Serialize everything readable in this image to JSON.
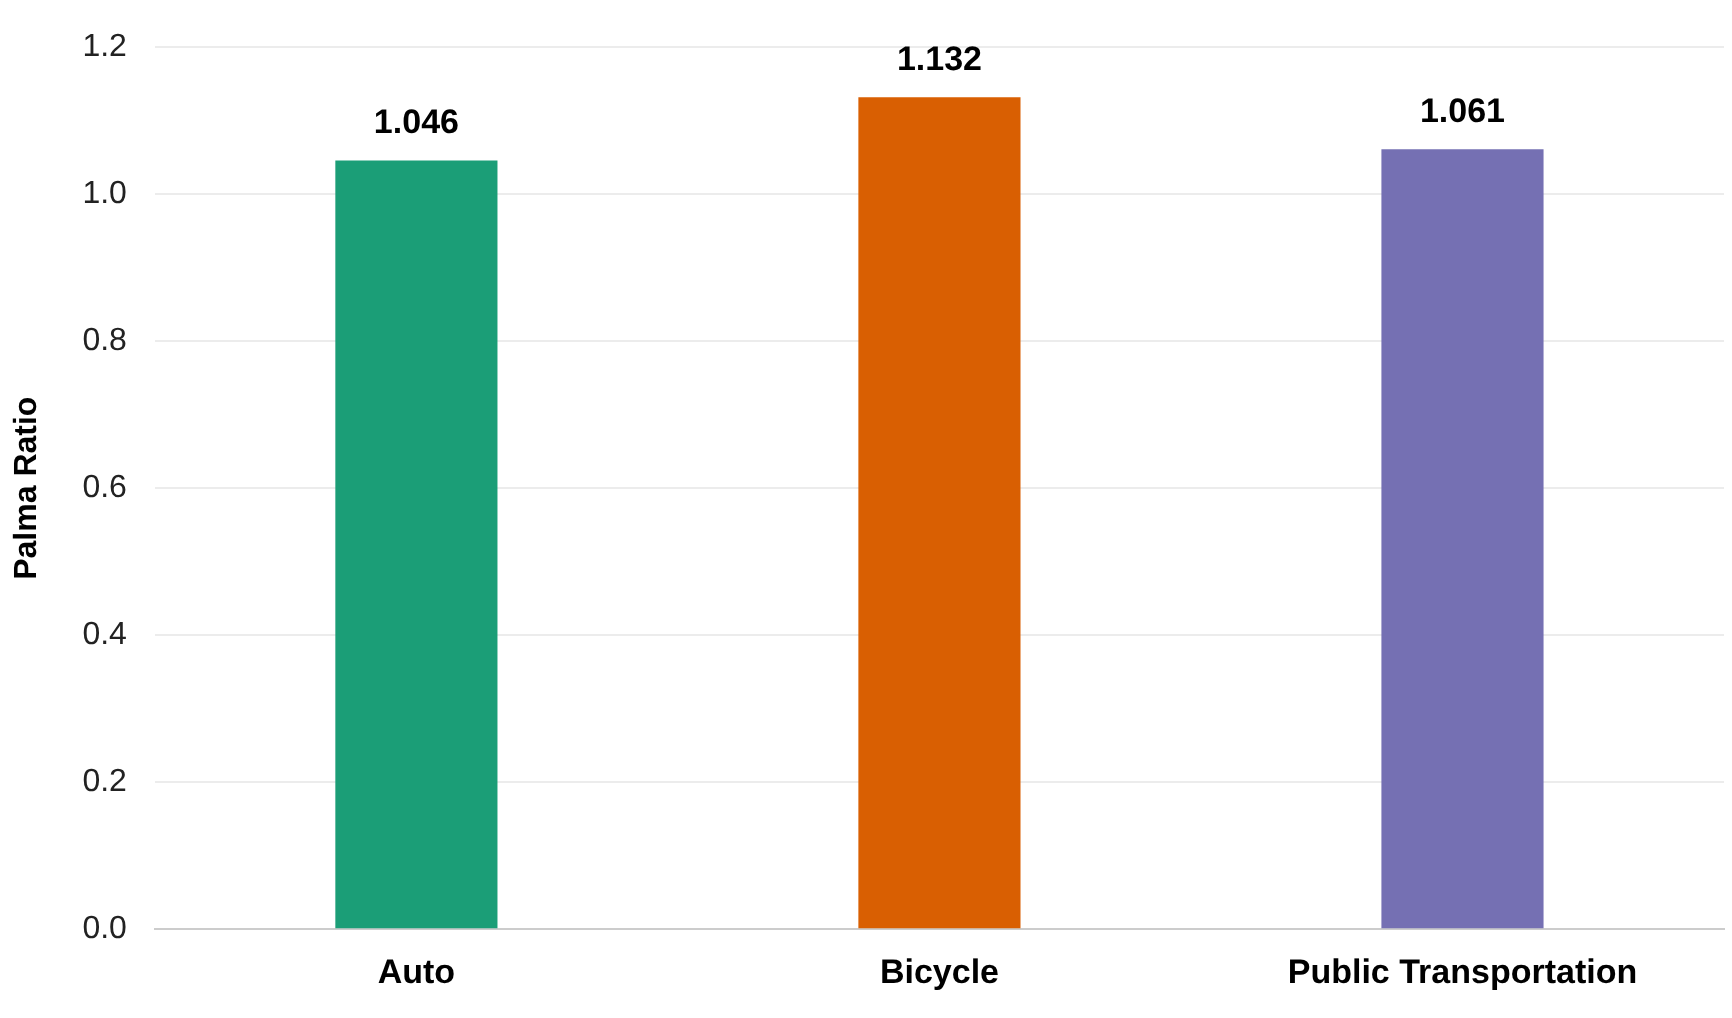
{
  "chart_data": {
    "type": "bar",
    "ylabel": "Palma Ratio",
    "categories": [
      "Auto",
      "Bicycle",
      "Public Transportation"
    ],
    "values": [
      1.046,
      1.132,
      1.061
    ],
    "colors": [
      "#1b9e77",
      "#d95f02",
      "#7570b3"
    ],
    "ylim": [
      0,
      1.2
    ],
    "yticks": [
      {
        "value": 0,
        "label": "0.0"
      },
      {
        "value": 0.2,
        "label": "0.2"
      },
      {
        "value": 0.4,
        "label": "0.4"
      },
      {
        "value": 0.6,
        "label": "0.6"
      },
      {
        "value": 0.8,
        "label": "0.8"
      },
      {
        "value": 1,
        "label": "1.0"
      },
      {
        "value": 1.2,
        "label": "1.2"
      }
    ],
    "grid": "y",
    "data_labels": true,
    "legend": false
  }
}
